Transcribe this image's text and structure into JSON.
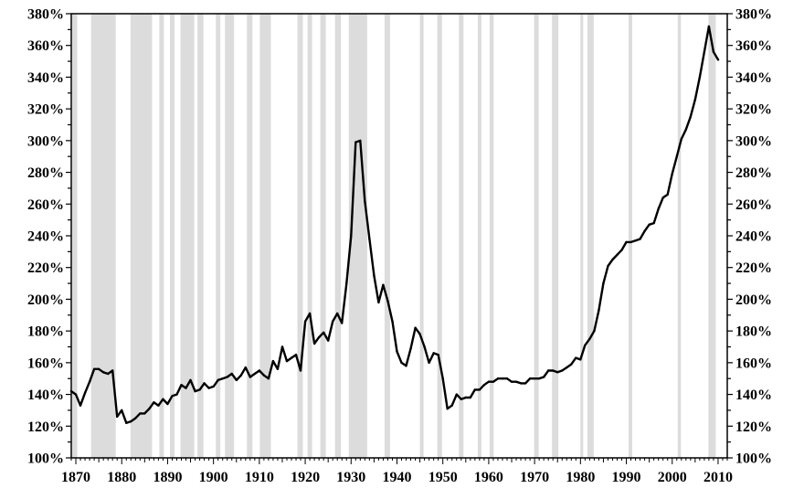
{
  "chart_data": {
    "type": "line",
    "title": "",
    "xlabel": "",
    "ylabel": "",
    "xlim": [
      1869,
      2012
    ],
    "ylim": [
      100,
      380
    ],
    "x_ticks": [
      1870,
      1880,
      1890,
      1900,
      1910,
      1920,
      1930,
      1940,
      1950,
      1960,
      1970,
      1980,
      1990,
      2000,
      2010
    ],
    "x_tick_labels": [
      "1870",
      "1880",
      "1890",
      "1900",
      "1910",
      "1920",
      "1930",
      "1940",
      "1950",
      "1960",
      "1970",
      "1980",
      "1990",
      "2000",
      "2010"
    ],
    "y_ticks": [
      100,
      120,
      140,
      160,
      180,
      200,
      220,
      240,
      260,
      280,
      300,
      320,
      340,
      360,
      380
    ],
    "y_tick_labels": [
      "100%",
      "120%",
      "140%",
      "160%",
      "180%",
      "200%",
      "220%",
      "240%",
      "260%",
      "280%",
      "300%",
      "320%",
      "340%",
      "360%",
      "380%"
    ],
    "y_unit": "%",
    "dual_y_axis": true,
    "grid": false,
    "legend": "none",
    "line_color": "#000000",
    "recession_shading_color": "#dcdcdc",
    "recession_periods": [
      [
        1869.2,
        1870.3
      ],
      [
        1873.3,
        1878.7
      ],
      [
        1881.9,
        1886.6
      ],
      [
        1888.2,
        1889.2
      ],
      [
        1890.5,
        1891.5
      ],
      [
        1892.8,
        1895.8
      ],
      [
        1896.5,
        1897.8
      ],
      [
        1900.5,
        1901.5
      ],
      [
        1902.5,
        1904.5
      ],
      [
        1907.3,
        1908.5
      ],
      [
        1910.1,
        1912.5
      ],
      [
        1918.3,
        1919.5
      ],
      [
        1920.5,
        1921.5
      ],
      [
        1923.3,
        1924.5
      ],
      [
        1926.5,
        1927.8
      ],
      [
        1929.5,
        1933.5
      ],
      [
        1937.3,
        1938.5
      ],
      [
        1945.0,
        1945.8
      ],
      [
        1948.8,
        1949.8
      ],
      [
        1953.5,
        1954.5
      ],
      [
        1957.6,
        1958.4
      ],
      [
        1960.2,
        1961.1
      ],
      [
        1969.9,
        1970.9
      ],
      [
        1973.8,
        1975.2
      ],
      [
        1980.0,
        1980.6
      ],
      [
        1981.5,
        1982.9
      ],
      [
        1990.5,
        1991.3
      ],
      [
        2001.2,
        2001.9
      ],
      [
        2007.9,
        2009.5
      ]
    ],
    "series": [
      {
        "values": [
          [
            1869,
            142
          ],
          [
            1870,
            140
          ],
          [
            1871,
            133
          ],
          [
            1872,
            141
          ],
          [
            1873,
            148
          ],
          [
            1874,
            156
          ],
          [
            1875,
            156
          ],
          [
            1876,
            154
          ],
          [
            1877,
            153
          ],
          [
            1878,
            155
          ],
          [
            1879,
            126
          ],
          [
            1880,
            130
          ],
          [
            1881,
            122
          ],
          [
            1882,
            123
          ],
          [
            1883,
            125
          ],
          [
            1884,
            128
          ],
          [
            1885,
            128
          ],
          [
            1886,
            131
          ],
          [
            1887,
            135
          ],
          [
            1888,
            133
          ],
          [
            1889,
            137
          ],
          [
            1890,
            134
          ],
          [
            1891,
            139
          ],
          [
            1892,
            140
          ],
          [
            1893,
            146
          ],
          [
            1894,
            144
          ],
          [
            1895,
            149
          ],
          [
            1896,
            142
          ],
          [
            1897,
            143
          ],
          [
            1898,
            147
          ],
          [
            1899,
            144
          ],
          [
            1900,
            145
          ],
          [
            1901,
            149
          ],
          [
            1902,
            150
          ],
          [
            1903,
            151
          ],
          [
            1904,
            153
          ],
          [
            1905,
            149
          ],
          [
            1906,
            152
          ],
          [
            1907,
            157
          ],
          [
            1908,
            151
          ],
          [
            1909,
            153
          ],
          [
            1910,
            155
          ],
          [
            1911,
            152
          ],
          [
            1912,
            150
          ],
          [
            1913,
            161
          ],
          [
            1914,
            156
          ],
          [
            1915,
            170
          ],
          [
            1916,
            161
          ],
          [
            1917,
            163
          ],
          [
            1918,
            165
          ],
          [
            1919,
            155
          ],
          [
            1920,
            186
          ],
          [
            1921,
            191
          ],
          [
            1922,
            172
          ],
          [
            1923,
            176
          ],
          [
            1924,
            179
          ],
          [
            1925,
            174
          ],
          [
            1926,
            186
          ],
          [
            1927,
            191
          ],
          [
            1928,
            185
          ],
          [
            1929,
            210
          ],
          [
            1930,
            240
          ],
          [
            1931,
            299
          ],
          [
            1932,
            300
          ],
          [
            1933,
            262
          ],
          [
            1934,
            238
          ],
          [
            1935,
            215
          ],
          [
            1936,
            198
          ],
          [
            1937,
            209
          ],
          [
            1938,
            199
          ],
          [
            1939,
            186
          ],
          [
            1940,
            167
          ],
          [
            1941,
            160
          ],
          [
            1942,
            158
          ],
          [
            1943,
            169
          ],
          [
            1944,
            182
          ],
          [
            1945,
            178
          ],
          [
            1946,
            170
          ],
          [
            1947,
            160
          ],
          [
            1948,
            166
          ],
          [
            1949,
            165
          ],
          [
            1950,
            150
          ],
          [
            1951,
            131
          ],
          [
            1952,
            133
          ],
          [
            1953,
            140
          ],
          [
            1954,
            137
          ],
          [
            1955,
            138
          ],
          [
            1956,
            138
          ],
          [
            1957,
            143
          ],
          [
            1958,
            143
          ],
          [
            1959,
            146
          ],
          [
            1960,
            148
          ],
          [
            1961,
            148
          ],
          [
            1962,
            150
          ],
          [
            1963,
            150
          ],
          [
            1964,
            150
          ],
          [
            1965,
            148
          ],
          [
            1966,
            148
          ],
          [
            1967,
            147
          ],
          [
            1968,
            147
          ],
          [
            1969,
            150
          ],
          [
            1970,
            150
          ],
          [
            1971,
            150
          ],
          [
            1972,
            151
          ],
          [
            1973,
            155
          ],
          [
            1974,
            155
          ],
          [
            1975,
            154
          ],
          [
            1976,
            155
          ],
          [
            1977,
            157
          ],
          [
            1978,
            159
          ],
          [
            1979,
            163
          ],
          [
            1980,
            162
          ],
          [
            1981,
            171
          ],
          [
            1982,
            175
          ],
          [
            1983,
            180
          ],
          [
            1984,
            193
          ],
          [
            1985,
            210
          ],
          [
            1986,
            221
          ],
          [
            1987,
            225
          ],
          [
            1988,
            228
          ],
          [
            1989,
            231
          ],
          [
            1990,
            236
          ],
          [
            1991,
            236
          ],
          [
            1992,
            237
          ],
          [
            1993,
            238
          ],
          [
            1994,
            243
          ],
          [
            1995,
            247
          ],
          [
            1996,
            248
          ],
          [
            1997,
            257
          ],
          [
            1998,
            264
          ],
          [
            1999,
            266
          ],
          [
            2000,
            279
          ],
          [
            2001,
            290
          ],
          [
            2002,
            301
          ],
          [
            2003,
            307
          ],
          [
            2004,
            315
          ],
          [
            2005,
            326
          ],
          [
            2006,
            340
          ],
          [
            2007,
            356
          ],
          [
            2008,
            372
          ],
          [
            2009,
            356
          ],
          [
            2010,
            351
          ]
        ]
      }
    ]
  }
}
